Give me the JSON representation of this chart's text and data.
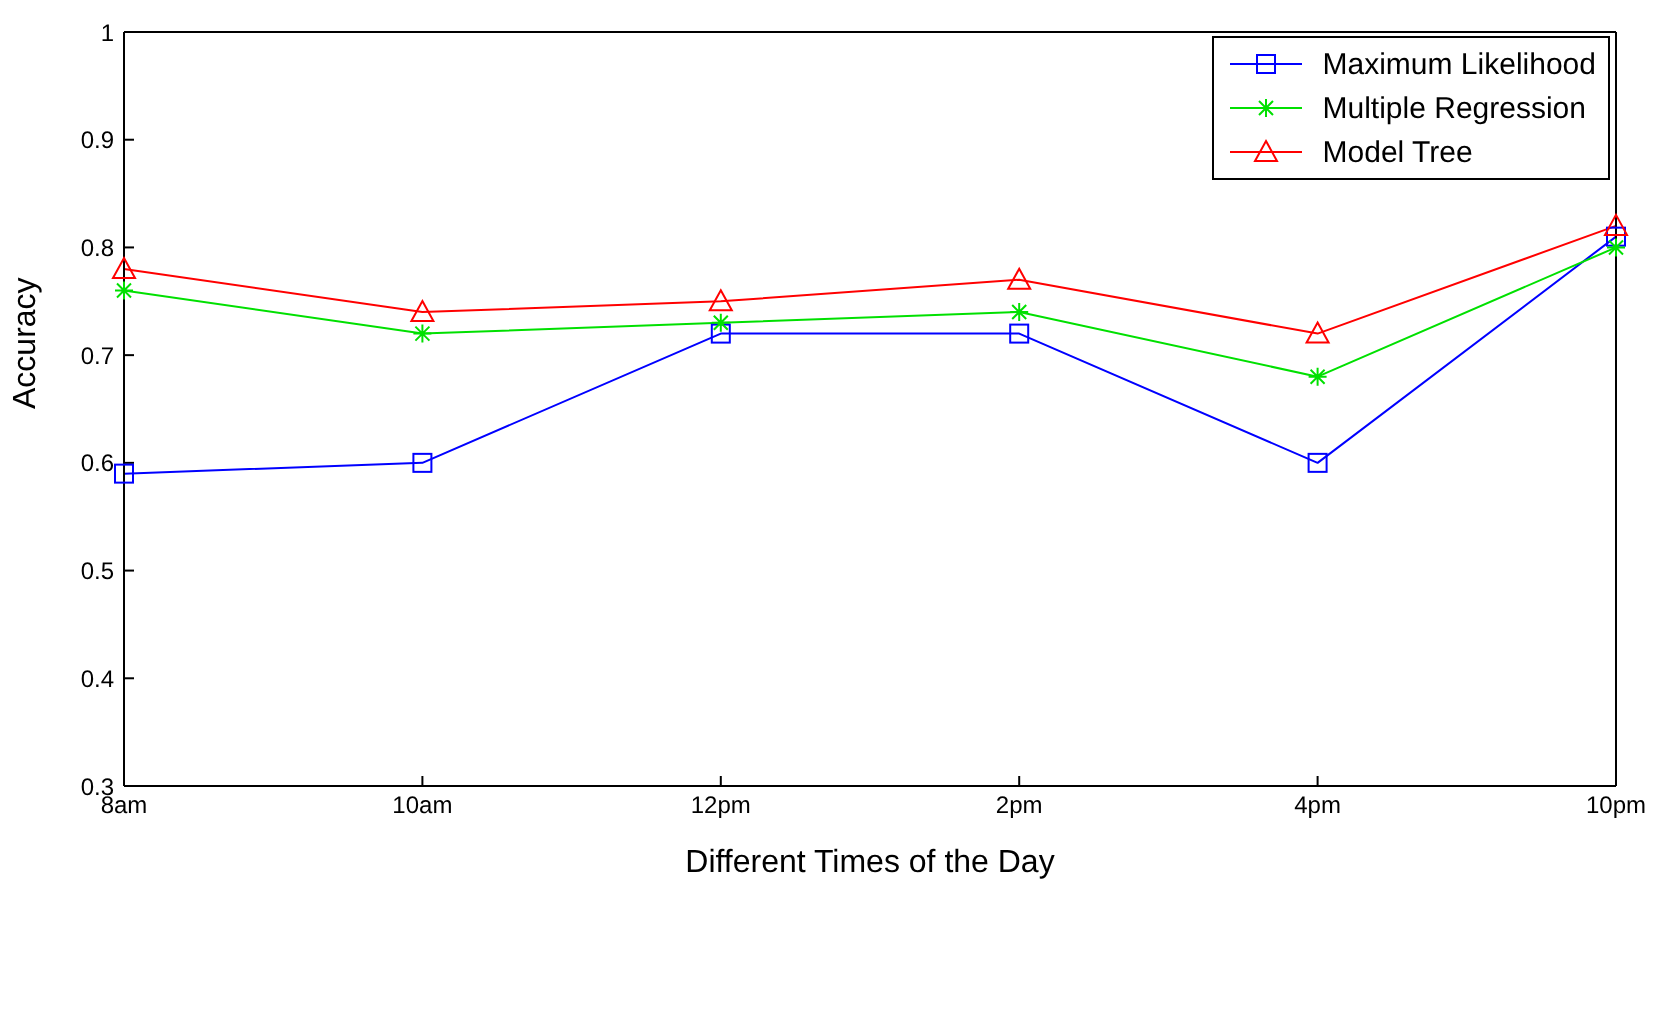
{
  "chart_data": {
    "type": "line",
    "xlabel": "Different Times of the Day",
    "ylabel": "Accuracy",
    "categories": [
      "8am",
      "10am",
      "12pm",
      "2pm",
      "4pm",
      "10pm"
    ],
    "ylim": [
      0.3,
      1
    ],
    "yticks": [
      0.3,
      0.4,
      0.5,
      0.6,
      0.7,
      0.8,
      0.9,
      1
    ],
    "grid": false,
    "legend": "top right",
    "line_style": "solid",
    "series": [
      {
        "name": "Maximum Likelihood",
        "color": "#0000ff",
        "marker": "square",
        "values": [
          0.59,
          0.6,
          0.72,
          0.72,
          0.6,
          0.81
        ]
      },
      {
        "name": "Multiple Regression",
        "color": "#00e000",
        "marker": "cross",
        "values": [
          0.76,
          0.72,
          0.73,
          0.74,
          0.68,
          0.8
        ]
      },
      {
        "name": "Model Tree",
        "color": "#ff0000",
        "marker": "triangle",
        "values": [
          0.78,
          0.74,
          0.75,
          0.77,
          0.72,
          0.82
        ]
      }
    ]
  }
}
